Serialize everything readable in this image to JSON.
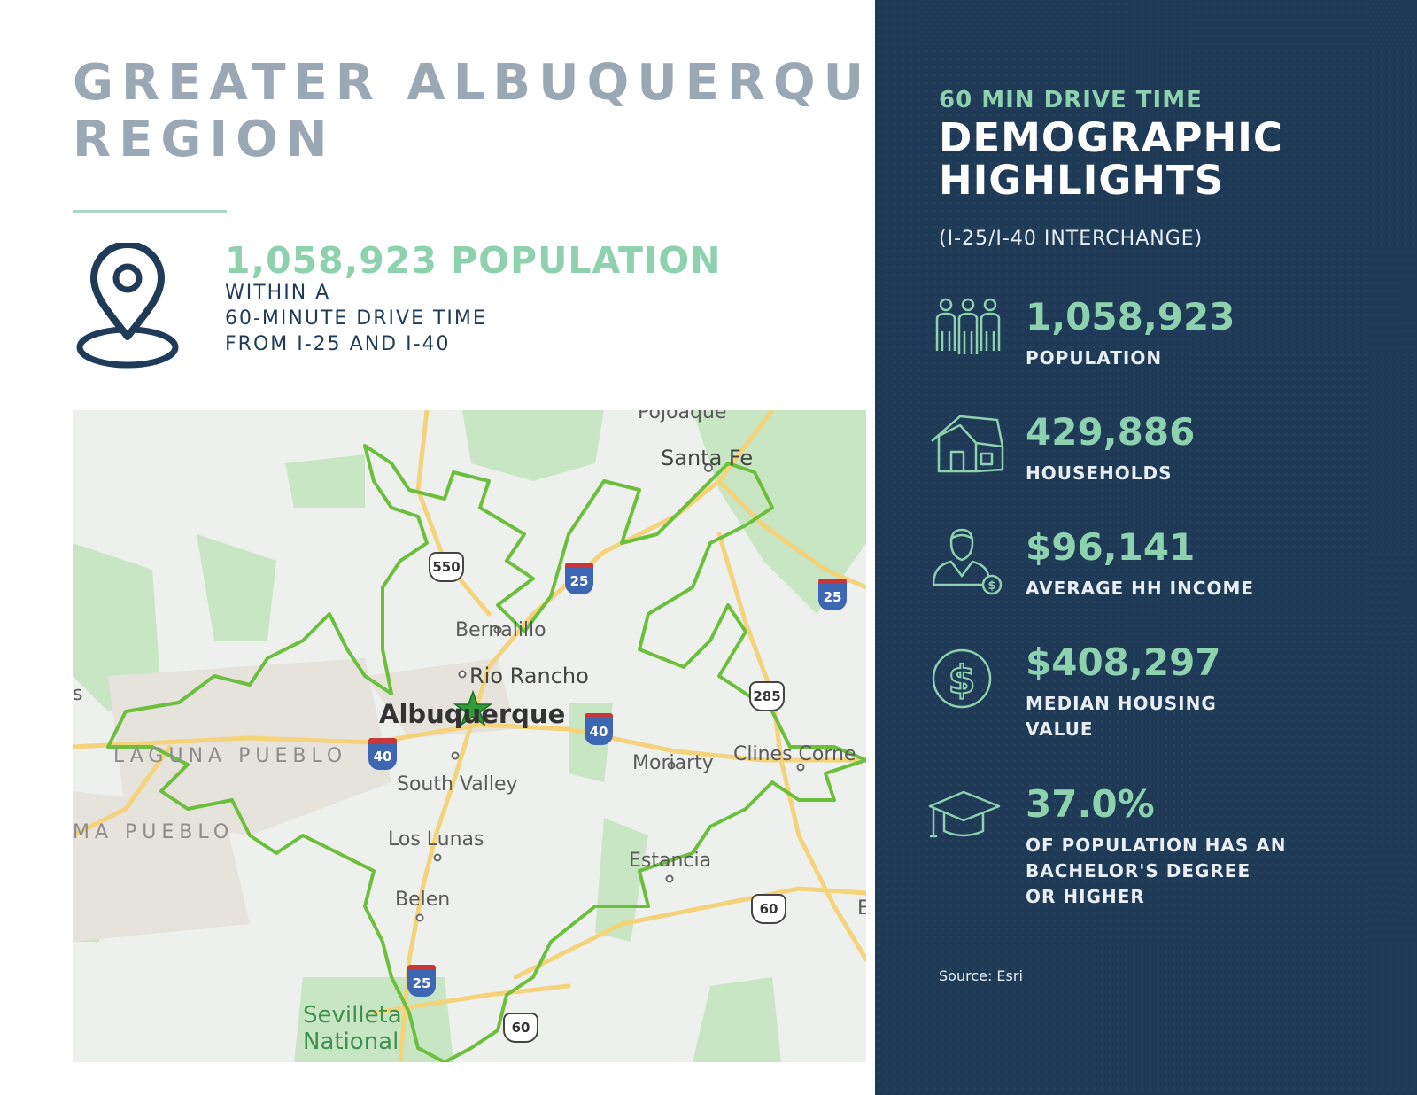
{
  "left": {
    "title_line1": "GREATER ALBUQUERQUE",
    "title_line2": "REGION",
    "population_headline": "1,058,923 POPULATION",
    "population_sub": [
      "WITHIN A",
      "60-MINUTE DRIVE TIME",
      "FROM I-25 AND I-40"
    ],
    "icon": "location-pin-icon"
  },
  "map": {
    "places": {
      "santa_fe": "Santa Fe",
      "bernalillo": "Bernalillo",
      "rio_rancho": "Rio Rancho",
      "albuquerque": "Albuquerque",
      "south_valley": "South Valley",
      "los_lunas": "Los Lunas",
      "belen": "Belen",
      "moriarty": "Moriarty",
      "clines_corners": "Clines Corne",
      "estancia": "Estancia",
      "laguna_pueblo": "LAGUNA PUEBLO",
      "acoma_pueblo": "MA PUEBLO",
      "sevilleta_line1": "Sevilleta",
      "sevilleta_line2": "National",
      "pojoaque": "Pojoaque",
      "edge_s": "s",
      "edge_e": "E"
    },
    "shields": {
      "us550": "550",
      "i25_north": "25",
      "i25_ne": "25",
      "us285": "285",
      "i40_west": "40",
      "i40_east": "40",
      "us60_east": "60",
      "i25_south": "25",
      "us60_south": "60"
    },
    "colors": {
      "drive_time_boundary": "#6cbf3c",
      "roads": "#f5d37a",
      "parks": "#c8e6c4",
      "origin_marker": "#2f9e3a"
    }
  },
  "panel": {
    "kicker": "60 MIN DRIVE TIME",
    "title_line1": "DEMOGRAPHIC",
    "title_line2": "HIGHLIGHTS",
    "note": "(I-25/I-40 INTERCHANGE)",
    "stats": [
      {
        "icon": "people-group-icon",
        "value": "1,058,923",
        "label": [
          "POPULATION"
        ]
      },
      {
        "icon": "house-icon",
        "value": "429,886",
        "label": [
          "HOUSEHOLDS"
        ]
      },
      {
        "icon": "person-income-icon",
        "value": "$96,141",
        "label": [
          "AVERAGE HH INCOME"
        ]
      },
      {
        "icon": "dollar-coin-icon",
        "value": "$408,297",
        "label": [
          "MEDIAN HOUSING",
          "VALUE"
        ]
      },
      {
        "icon": "graduation-cap-icon",
        "value": "37.0%",
        "label": [
          "OF POPULATION HAS AN",
          "BACHELOR'S DEGREE",
          "OR HIGHER"
        ]
      }
    ],
    "source": "Source: Esri",
    "colors": {
      "background": "#1e3a56",
      "accent": "#8ed1ae"
    }
  }
}
